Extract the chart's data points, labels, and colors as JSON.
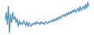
{
  "values": [
    -5,
    2,
    -10,
    8,
    -18,
    0,
    -8,
    2,
    -5,
    -2,
    -8,
    -4,
    -12,
    -6,
    -10,
    -8,
    -10,
    -6,
    -8,
    -11,
    -7,
    -12,
    -8,
    -10,
    -12,
    -9,
    -10,
    -8,
    -10,
    -7,
    -9,
    -8,
    -10,
    -7,
    -9,
    -8,
    -10,
    -7,
    -8,
    -9,
    -7,
    -8,
    -6,
    -7,
    -5,
    -7,
    -4,
    -6,
    -3,
    -5,
    -2,
    -4,
    -1,
    -2,
    0,
    -2,
    1,
    -1,
    2,
    0,
    3,
    1,
    4,
    2,
    5,
    2,
    4,
    6,
    3,
    8,
    4,
    6,
    8,
    5,
    10,
    6,
    12,
    8
  ],
  "line_color": "#4a8fbe",
  "background_color": "#ffffff",
  "linewidth": 0.9
}
